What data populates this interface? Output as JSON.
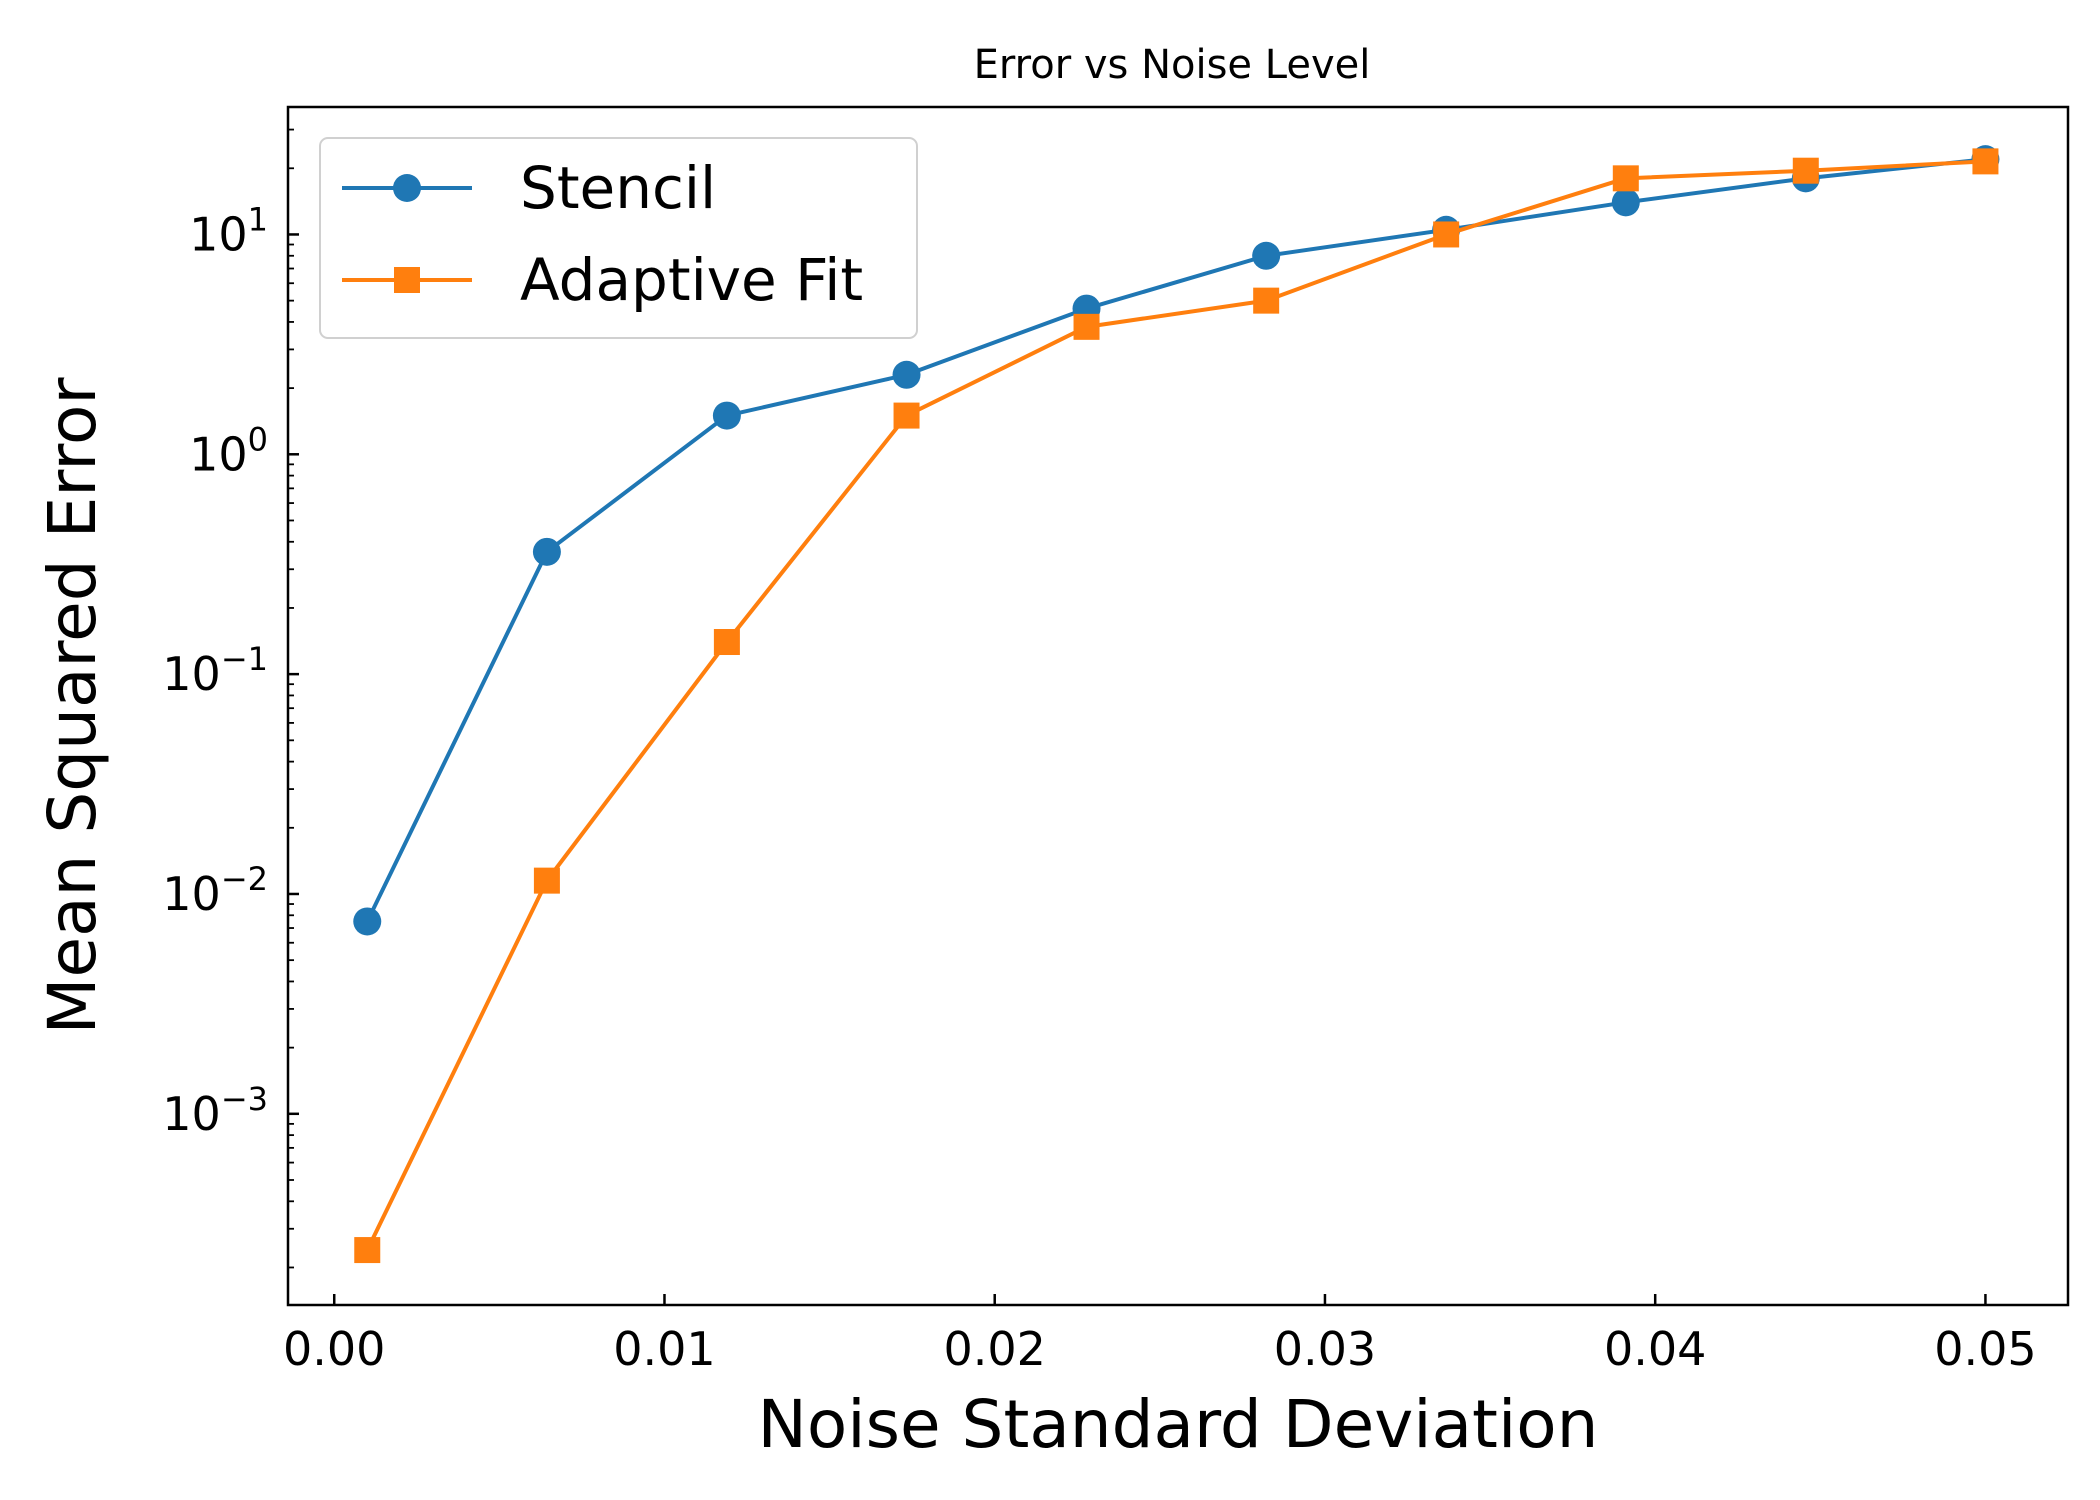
{
  "chart_data": {
    "type": "line",
    "title": "Error vs Noise Level",
    "xlabel": "Noise Standard Deviation",
    "ylabel": "Mean Squared Error",
    "xscale": "linear",
    "yscale": "log",
    "xlim": [
      -0.0014,
      0.0525
    ],
    "ylim": [
      0.000135,
      38
    ],
    "xticks": [
      0.0,
      0.01,
      0.02,
      0.03,
      0.04,
      0.05
    ],
    "xtick_labels": [
      "0.00",
      "0.01",
      "0.02",
      "0.03",
      "0.04",
      "0.05"
    ],
    "yticks": [
      0.001,
      0.01,
      0.1,
      1,
      10
    ],
    "ytick_labels": [
      {
        "base": "10",
        "exp": "−3"
      },
      {
        "base": "10",
        "exp": "−2"
      },
      {
        "base": "10",
        "exp": "−1"
      },
      {
        "base": "10",
        "exp": "0"
      },
      {
        "base": "10",
        "exp": "1"
      }
    ],
    "grid": false,
    "legend_position": "top-left",
    "x": [
      0.001,
      0.00644,
      0.01189,
      0.01733,
      0.02278,
      0.02822,
      0.03367,
      0.03911,
      0.04456,
      0.05
    ],
    "series": [
      {
        "name": "Stencil",
        "color": "#1f77b4",
        "marker": "circle",
        "values": [
          0.0075,
          0.36,
          1.5,
          2.3,
          4.6,
          8.0,
          10.5,
          14.0,
          18.0,
          22.0
        ]
      },
      {
        "name": "Adaptive Fit",
        "color": "#ff7f0e",
        "marker": "square",
        "values": [
          0.00024,
          0.0115,
          0.14,
          1.5,
          3.8,
          5.0,
          10.0,
          18.0,
          19.5,
          21.5
        ]
      }
    ]
  }
}
